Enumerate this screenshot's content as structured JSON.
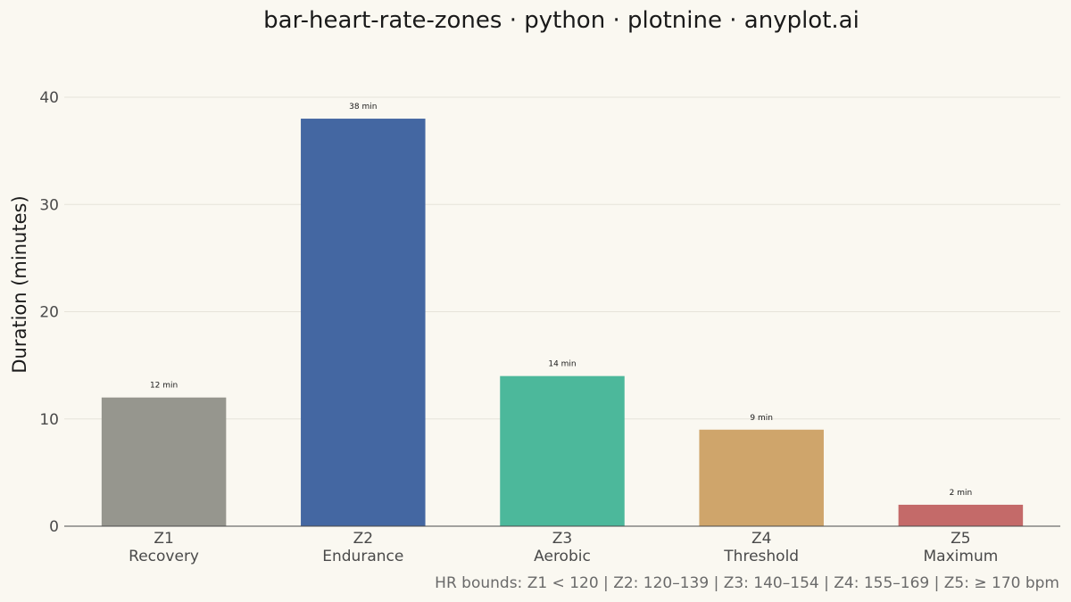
{
  "chart_data": {
    "type": "bar",
    "title": "bar-heart-rate-zones · python · plotnine · anyplot.ai",
    "ylabel": "Duration (minutes)",
    "xlabel": "",
    "ylim": [
      0,
      40
    ],
    "yticks": [
      0,
      10,
      20,
      30,
      40
    ],
    "grid": true,
    "categories": [
      {
        "zone": "Z1",
        "name": "Recovery"
      },
      {
        "zone": "Z2",
        "name": "Endurance"
      },
      {
        "zone": "Z3",
        "name": "Aerobic"
      },
      {
        "zone": "Z4",
        "name": "Threshold"
      },
      {
        "zone": "Z5",
        "name": "Maximum"
      }
    ],
    "values": [
      12,
      38,
      14,
      9,
      2
    ],
    "data_labels": [
      "12 min",
      "38 min",
      "14 min",
      "9 min",
      "2 min"
    ],
    "colors": [
      "#96968E",
      "#4467A2",
      "#4CB89B",
      "#CFA56B",
      "#C46A69"
    ],
    "caption": "HR bounds: Z1 < 120 | Z2: 120–139 | Z3: 140–154 | Z4: 155–169 | Z5: ≥ 170 bpm"
  }
}
